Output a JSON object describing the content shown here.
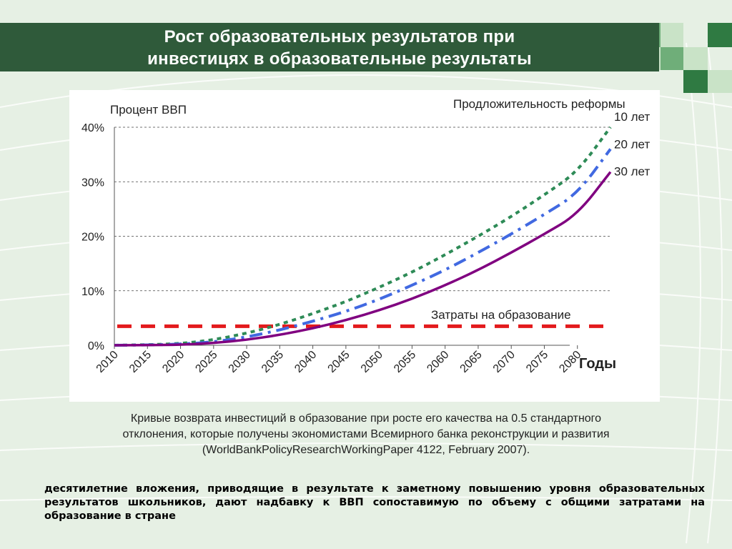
{
  "slide": {
    "title_line1": "Рост образовательных результатов при",
    "title_line2": "инвестицях в образовательные результаты",
    "caption_line1": "Кривые возврата инвестиций в образование при росте его качества на 0.5 стандартного",
    "caption_line2": "отклонения, которые получены экономистами Всемирного банка реконструкции и развития",
    "caption_line3": "(WorldBankPolicyResearchWorkingPaper 4122, February 2007).",
    "conclusion": "десятилетние вложения, приводящие в результате к заметному повышению уровня образовательных результатов школьников, дают надбавку к ВВП сопоставимую по объему с общими затратами на образование в стране"
  },
  "colors": {
    "title_bar": "#2f5a3a",
    "background": "#e6f0e4",
    "series_10": "#2e8b57",
    "series_20": "#4169e1",
    "series_30": "#800080",
    "spending": "#e31a1c"
  },
  "chart_data": {
    "type": "line",
    "ylabel": "Процент ВВП",
    "xlabel": "Годы",
    "legend_title": "Продложительность реформы",
    "annotation": "Затраты на образование",
    "x_ticks": [
      2010,
      2015,
      2020,
      2025,
      2030,
      2035,
      2040,
      2045,
      2050,
      2055,
      2060,
      2065,
      2070,
      2075,
      2080
    ],
    "y_ticks": [
      0,
      10,
      20,
      30,
      40
    ],
    "y_tick_labels": [
      "0%",
      "10%",
      "20%",
      "30%",
      "40%"
    ],
    "xlim": [
      2010,
      2085
    ],
    "ylim": [
      0,
      40
    ],
    "grid": "horizontal-dashed",
    "x": [
      2010,
      2015,
      2020,
      2025,
      2030,
      2035,
      2040,
      2045,
      2050,
      2055,
      2060,
      2065,
      2070,
      2075,
      2080,
      2085
    ],
    "series": [
      {
        "name": "10 лет",
        "style": "dotted",
        "values": [
          0,
          0.1,
          0.3,
          1.0,
          2.2,
          3.8,
          5.8,
          8.0,
          10.6,
          13.4,
          16.6,
          20.0,
          23.6,
          27.6,
          31.8,
          40.0
        ]
      },
      {
        "name": "20 лет",
        "style": "dashdot",
        "values": [
          0,
          0.05,
          0.2,
          0.6,
          1.5,
          2.8,
          4.4,
          6.2,
          8.4,
          11.0,
          13.8,
          17.0,
          20.4,
          24.0,
          27.8,
          36.0
        ]
      },
      {
        "name": "30 лет",
        "style": "solid",
        "values": [
          0,
          0.02,
          0.1,
          0.4,
          1.0,
          1.9,
          3.1,
          4.6,
          6.4,
          8.5,
          11.0,
          13.8,
          17.0,
          20.4,
          24.0,
          31.8
        ]
      }
    ],
    "spending": {
      "name": "Затраты на образование",
      "value": 3.5
    }
  }
}
